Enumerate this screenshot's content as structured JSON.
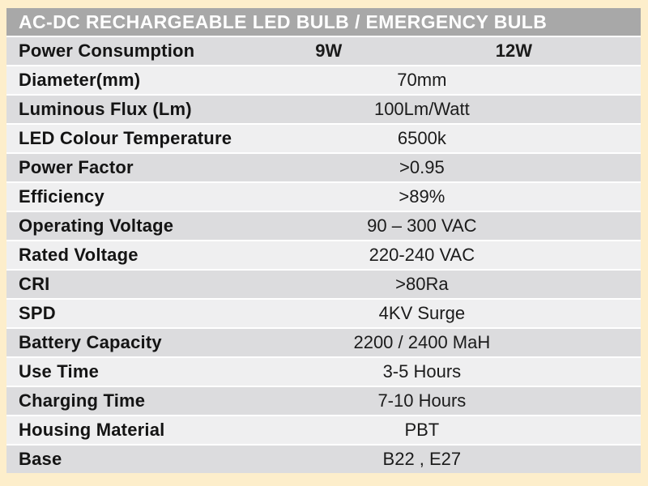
{
  "page_background": "#fdeecb",
  "header": {
    "title": "AC-DC RECHARGEABLE LED BULB / EMERGENCY BULB",
    "background": "#a8a8a8",
    "text_color": "#ffffff"
  },
  "table": {
    "row_dark": "#dcdcde",
    "row_light": "#efeff0",
    "rows": [
      {
        "label": "Power Consumption",
        "values": [
          "9W",
          "12W"
        ]
      },
      {
        "label": "Diameter(mm)",
        "value": "70mm"
      },
      {
        "label": "Luminous Flux (Lm)",
        "value": "100Lm/Watt"
      },
      {
        "label": "LED Colour Temperature",
        "value": "6500k"
      },
      {
        "label": "Power Factor",
        "value": ">0.95"
      },
      {
        "label": "Efficiency",
        "value": ">89%"
      },
      {
        "label": "Operating Voltage",
        "value": "90 – 300 VAC"
      },
      {
        "label": "Rated Voltage",
        "value": "220-240 VAC"
      },
      {
        "label": "CRI",
        "value": ">80Ra"
      },
      {
        "label": "SPD",
        "value": "4KV Surge"
      },
      {
        "label": "Battery Capacity",
        "value": "2200 / 2400 MaH"
      },
      {
        "label": "Use Time",
        "value": "3-5 Hours"
      },
      {
        "label": "Charging Time",
        "value": "7-10 Hours"
      },
      {
        "label": "Housing Material",
        "value": "PBT"
      },
      {
        "label": "Base",
        "value": "B22 , E27"
      }
    ]
  }
}
